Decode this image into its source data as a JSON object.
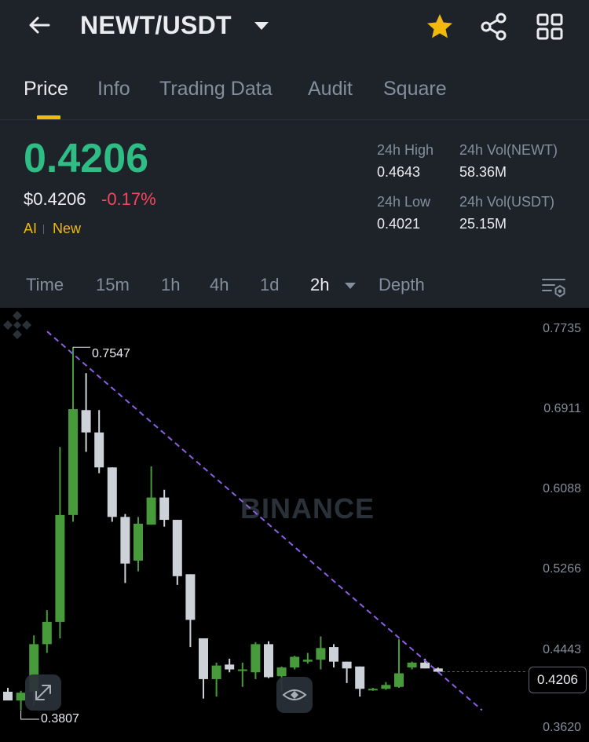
{
  "header": {
    "pair": "NEWT/USDT",
    "icons": [
      "back-arrow-icon",
      "dropdown-caret-icon",
      "star-icon",
      "share-icon",
      "grid-icon"
    ],
    "star_color": "#f0b90b"
  },
  "tabs": [
    {
      "label": "Price",
      "active": true
    },
    {
      "label": "Info",
      "active": false
    },
    {
      "label": "Trading Data",
      "active": false
    },
    {
      "label": "Audit",
      "active": false
    },
    {
      "label": "Square",
      "active": false
    }
  ],
  "ticker": {
    "last_price": "0.4206",
    "usd_price": "$0.4206",
    "change": "-0.17%",
    "tags": [
      "AI",
      "New"
    ],
    "high_label": "24h High",
    "high_value": "0.4643",
    "low_label": "24h Low",
    "low_value": "0.4021",
    "vol_base_label": "24h Vol(NEWT)",
    "vol_base_value": "58.36M",
    "vol_quote_label": "24h Vol(USDT)",
    "vol_quote_value": "25.15M",
    "colors": {
      "up": "#2ebd85",
      "down": "#f6465d",
      "accent": "#f0b90b"
    }
  },
  "intervals": [
    {
      "label": "Time",
      "active": false
    },
    {
      "label": "15m",
      "active": false
    },
    {
      "label": "1h",
      "active": false
    },
    {
      "label": "4h",
      "active": false
    },
    {
      "label": "1d",
      "active": false
    },
    {
      "label": "2h",
      "active": true
    },
    {
      "label": "Depth",
      "active": false
    }
  ],
  "chart": {
    "watermark": "BINANCE",
    "y_labels": [
      "0.7735",
      "0.6911",
      "0.6088",
      "0.5266",
      "0.4443",
      "0.3620"
    ],
    "max_label": "0.7547",
    "min_label": "0.3807",
    "current_price_tag": "0.4206"
  },
  "chart_data": {
    "type": "candlestick",
    "interval": "2h",
    "ylim": [
      0.362,
      0.7735
    ],
    "y_ticks": [
      0.7735,
      0.6911,
      0.6088,
      0.5266,
      0.4443,
      0.362
    ],
    "candles": [
      {
        "o": 0.4,
        "h": 0.404,
        "l": 0.394,
        "c": 0.391
      },
      {
        "o": 0.391,
        "h": 0.401,
        "l": 0.381,
        "c": 0.399
      },
      {
        "o": 0.4,
        "h": 0.458,
        "l": 0.386,
        "c": 0.449
      },
      {
        "o": 0.449,
        "h": 0.484,
        "l": 0.44,
        "c": 0.472
      },
      {
        "o": 0.472,
        "h": 0.652,
        "l": 0.455,
        "c": 0.582
      },
      {
        "o": 0.582,
        "h": 0.755,
        "l": 0.575,
        "c": 0.691
      },
      {
        "o": 0.69,
        "h": 0.728,
        "l": 0.647,
        "c": 0.667
      },
      {
        "o": 0.667,
        "h": 0.69,
        "l": 0.625,
        "c": 0.631
      },
      {
        "o": 0.631,
        "h": 0.631,
        "l": 0.575,
        "c": 0.58
      },
      {
        "o": 0.58,
        "h": 0.583,
        "l": 0.512,
        "c": 0.532
      },
      {
        "o": 0.535,
        "h": 0.58,
        "l": 0.524,
        "c": 0.573
      },
      {
        "o": 0.572,
        "h": 0.632,
        "l": 0.572,
        "c": 0.6
      },
      {
        "o": 0.6,
        "h": 0.608,
        "l": 0.57,
        "c": 0.577
      },
      {
        "o": 0.577,
        "h": 0.577,
        "l": 0.51,
        "c": 0.519
      },
      {
        "o": 0.521,
        "h": 0.521,
        "l": 0.446,
        "c": 0.474
      },
      {
        "o": 0.455,
        "h": 0.455,
        "l": 0.393,
        "c": 0.413
      },
      {
        "o": 0.413,
        "h": 0.43,
        "l": 0.395,
        "c": 0.427
      },
      {
        "o": 0.428,
        "h": 0.434,
        "l": 0.42,
        "c": 0.423
      },
      {
        "o": 0.423,
        "h": 0.43,
        "l": 0.405,
        "c": 0.423
      },
      {
        "o": 0.42,
        "h": 0.451,
        "l": 0.413,
        "c": 0.449
      },
      {
        "o": 0.449,
        "h": 0.452,
        "l": 0.414,
        "c": 0.415
      },
      {
        "o": 0.416,
        "h": 0.426,
        "l": 0.4,
        "c": 0.425
      },
      {
        "o": 0.425,
        "h": 0.437,
        "l": 0.423,
        "c": 0.436
      },
      {
        "o": 0.431,
        "h": 0.44,
        "l": 0.429,
        "c": 0.433
      },
      {
        "o": 0.433,
        "h": 0.457,
        "l": 0.423,
        "c": 0.445
      },
      {
        "o": 0.446,
        "h": 0.449,
        "l": 0.425,
        "c": 0.431
      },
      {
        "o": 0.431,
        "h": 0.431,
        "l": 0.409,
        "c": 0.424
      },
      {
        "o": 0.426,
        "h": 0.426,
        "l": 0.395,
        "c": 0.403
      },
      {
        "o": 0.403,
        "h": 0.404,
        "l": 0.401,
        "c": 0.403
      },
      {
        "o": 0.403,
        "h": 0.41,
        "l": 0.402,
        "c": 0.407
      },
      {
        "o": 0.405,
        "h": 0.454,
        "l": 0.404,
        "c": 0.419
      },
      {
        "o": 0.425,
        "h": 0.431,
        "l": 0.423,
        "c": 0.43
      },
      {
        "o": 0.43,
        "h": 0.434,
        "l": 0.424,
        "c": 0.424
      },
      {
        "o": 0.424,
        "h": 0.425,
        "l": 0.42,
        "c": 0.4206
      }
    ],
    "trendline": [
      [
        0,
        0.771
      ],
      [
        33,
        0.381
      ]
    ],
    "last_price": 0.4206,
    "max_value": 0.7547,
    "min_value": 0.3807,
    "colors": {
      "up": "#479b3a",
      "down": "#cdd1d8",
      "trendline": "#8c5fe6",
      "price_line": "#5e6673"
    }
  }
}
